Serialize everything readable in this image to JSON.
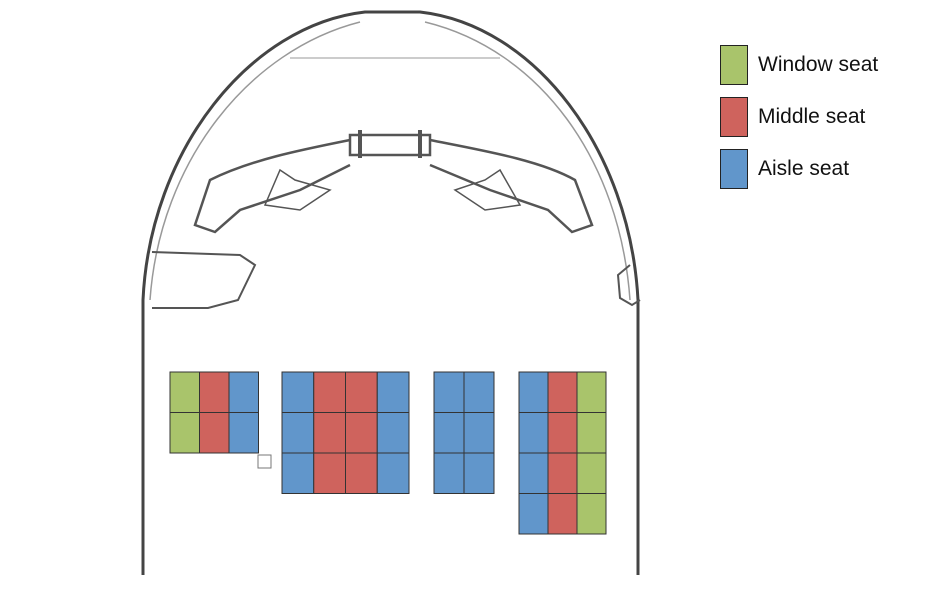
{
  "colors": {
    "window": "#a9c46b",
    "middle": "#cf635d",
    "aisle": "#6196cb",
    "outline": "#333333"
  },
  "legend": [
    {
      "key": "window",
      "label": "Window seat"
    },
    {
      "key": "middle",
      "label": "Middle seat"
    },
    {
      "key": "aisle",
      "label": "Aisle seat"
    }
  ],
  "seat_blocks": [
    {
      "rows": [
        [
          "window",
          "middle",
          "aisle"
        ],
        [
          "window",
          "middle",
          "aisle"
        ]
      ]
    },
    {
      "rows": [
        [
          "aisle",
          "middle",
          "middle",
          "aisle"
        ],
        [
          "aisle",
          "middle",
          "middle",
          "aisle"
        ],
        [
          "aisle",
          "middle",
          "middle",
          "aisle"
        ]
      ]
    },
    {
      "rows": [
        [
          "aisle",
          "aisle"
        ],
        [
          "aisle",
          "aisle"
        ],
        [
          "aisle",
          "aisle"
        ]
      ]
    },
    {
      "rows": [
        [
          "aisle",
          "middle",
          "window"
        ],
        [
          "aisle",
          "middle",
          "window"
        ],
        [
          "aisle",
          "middle",
          "window"
        ],
        [
          "aisle",
          "middle",
          "window"
        ]
      ]
    }
  ]
}
